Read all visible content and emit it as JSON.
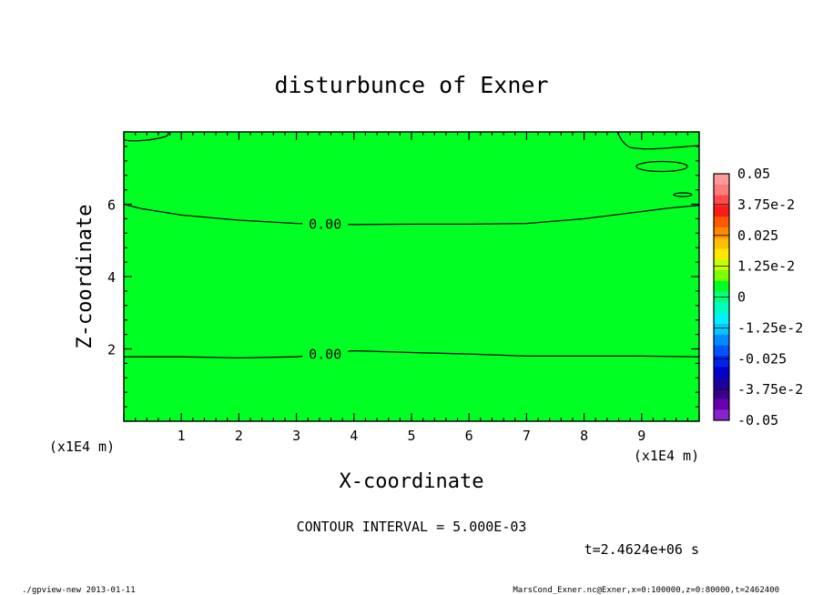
{
  "chart_data": {
    "type": "heatmap",
    "title": "disturbunce of Exner",
    "xlabel": "X-coordinate",
    "ylabel": "Z-coordinate",
    "x_unit": "(x1E4 m)",
    "y_unit": "(x1E4 m)",
    "xlim": [
      0,
      10
    ],
    "ylim": [
      0,
      8
    ],
    "x_ticks": [
      1,
      2,
      3,
      4,
      5,
      6,
      7,
      8,
      9
    ],
    "y_ticks": [
      2,
      4,
      6
    ],
    "x_tick_labels": [
      "1",
      "2",
      "3",
      "4",
      "5",
      "6",
      "7",
      "8",
      "9"
    ],
    "y_tick_labels": [
      "2",
      "4",
      "6"
    ],
    "field_color": "#00ff22",
    "contours": [
      {
        "label": "0.00",
        "label_at": [
          3.5,
          5.45
        ],
        "points": [
          [
            0,
            6.0
          ],
          [
            0.3,
            5.88
          ],
          [
            1,
            5.7
          ],
          [
            2,
            5.56
          ],
          [
            3,
            5.47
          ],
          [
            4,
            5.44
          ],
          [
            5,
            5.45
          ],
          [
            6,
            5.45
          ],
          [
            7,
            5.47
          ],
          [
            8,
            5.6
          ],
          [
            9,
            5.8
          ],
          [
            9.5,
            5.9
          ],
          [
            10,
            5.97
          ]
        ]
      },
      {
        "label": "0.00",
        "label_at": [
          3.5,
          1.85
        ],
        "points": [
          [
            0,
            1.78
          ],
          [
            1,
            1.78
          ],
          [
            2,
            1.75
          ],
          [
            3,
            1.78
          ],
          [
            3.5,
            1.86
          ],
          [
            4,
            1.95
          ],
          [
            5,
            1.9
          ],
          [
            6,
            1.86
          ],
          [
            7,
            1.8
          ],
          [
            8,
            1.8
          ],
          [
            9,
            1.8
          ],
          [
            10,
            1.78
          ]
        ]
      }
    ],
    "colorbar": {
      "labels": [
        "0.05",
        "3.75e-2",
        "0.025",
        "1.25e-2",
        "0",
        "-1.25e-2",
        "-0.025",
        "-3.75e-2",
        "-0.05"
      ],
      "colors": [
        "#ff9a9a",
        "#ff7a7a",
        "#ff4a4a",
        "#ff1a1a",
        "#ff5a00",
        "#ff8a00",
        "#ffbf00",
        "#ffe800",
        "#c6ff00",
        "#7bff00",
        "#00ff22",
        "#00ff7a",
        "#00ffbf",
        "#00f2ff",
        "#00c8ff",
        "#008cff",
        "#0055ff",
        "#0022ee",
        "#0000cc",
        "#1a00a0",
        "#3a0088",
        "#6600b0",
        "#8822cc"
      ]
    },
    "contour_interval": "CONTOUR INTERVAL = 5.000E-03",
    "time_label": "t=2.4624e+06 s",
    "footer_left": "./gpview-new  2013-01-11",
    "footer_right": "MarsCond_Exner.nc@Exner,x=0:100000,z=0:80000,t=2462400"
  }
}
